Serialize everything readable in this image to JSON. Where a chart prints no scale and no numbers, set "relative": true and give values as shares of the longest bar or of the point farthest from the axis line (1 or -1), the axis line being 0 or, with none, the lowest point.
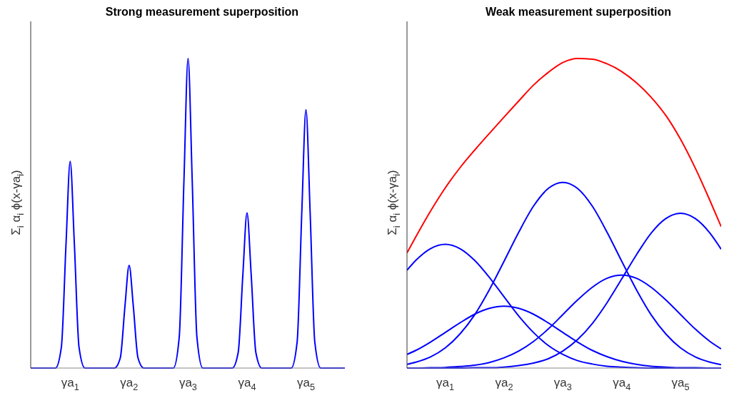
{
  "chart_data": [
    {
      "type": "line",
      "title": "Strong measurement superposition",
      "ylabel": "Σ$_{i}$ α$_{i}$ ϕ(x-γa$_{i}$)",
      "relative": true,
      "xlim": [
        0.33,
        5.66
      ],
      "xticks": [
        {
          "value": 1,
          "label": "γa$_{1}$"
        },
        {
          "value": 2,
          "label": "γa$_{2}$"
        },
        {
          "value": 3,
          "label": "γa$_{3}$"
        },
        {
          "value": 4,
          "label": "γa$_{4}$"
        },
        {
          "value": 5,
          "label": "γa$_{5}$"
        }
      ],
      "grid": false,
      "legend": false,
      "marker": "none",
      "line_style": "solid",
      "series": [
        {
          "color": "#0000ff",
          "x": [
            0.33,
            0.75,
            0.85,
            0.93,
            1,
            1.07,
            1.15,
            1.25,
            1.75,
            1.85,
            1.93,
            2,
            2.07,
            2.15,
            2.25,
            2.75,
            2.85,
            2.93,
            3,
            3.07,
            3.15,
            3.25,
            3.75,
            3.85,
            3.93,
            4,
            4.07,
            4.15,
            4.25,
            4.75,
            4.85,
            4.93,
            5,
            5.07,
            5.15,
            5.25,
            5.66
          ],
          "values": [
            0,
            0,
            0.067,
            0.405,
            0.668,
            0.405,
            0.067,
            0,
            0,
            0.033,
            0.202,
            0.332,
            0.202,
            0.033,
            0,
            0,
            0.1,
            0.607,
            1,
            0.607,
            0.1,
            0,
            0,
            0.05,
            0.304,
            0.501,
            0.304,
            0.05,
            0,
            0,
            0.084,
            0.507,
            0.835,
            0.507,
            0.084,
            0,
            0
          ]
        }
      ]
    },
    {
      "type": "line",
      "title": "Weak measurement superposition",
      "ylabel": "Σ$_{i}$ α$_{i}$ ϕ(x-γa$_{i}$)",
      "relative": true,
      "xlim": [
        0.35,
        5.69
      ],
      "xticks": [
        {
          "value": 1,
          "label": "γa$_{1}$"
        },
        {
          "value": 2,
          "label": "γa$_{2}$"
        },
        {
          "value": 3,
          "label": "γa$_{3}$"
        },
        {
          "value": 4,
          "label": "γa$_{4}$"
        },
        {
          "value": 5,
          "label": "γa$_{5}$"
        }
      ],
      "grid": false,
      "legend": false,
      "marker": "none",
      "line_style": "solid",
      "x": [
        0.35,
        0.5,
        0.75,
        1,
        1.25,
        1.5,
        1.75,
        2,
        2.25,
        2.5,
        2.75,
        3,
        3.25,
        3.5,
        3.75,
        4,
        4.25,
        4.5,
        4.75,
        5,
        5.25,
        5.5,
        5.69
      ],
      "series": [
        {
          "color": "#0000ff",
          "values": [
            0.316,
            0.348,
            0.386,
            0.4,
            0.386,
            0.348,
            0.293,
            0.23,
            0.168,
            0.115,
            0.073,
            0.044,
            0.024,
            0.013,
            0.006,
            0.003,
            0.001,
            0,
            0,
            0,
            0,
            0,
            0
          ]
        },
        {
          "color": "#0000ff",
          "values": [
            0.044,
            0.057,
            0.084,
            0.115,
            0.146,
            0.174,
            0.193,
            0.2,
            0.193,
            0.174,
            0.146,
            0.115,
            0.084,
            0.057,
            0.037,
            0.022,
            0.012,
            0.006,
            0.003,
            0.001,
            0.001,
            0,
            0
          ]
        },
        {
          "color": "#0000ff",
          "values": [
            0.012,
            0.019,
            0.036,
            0.065,
            0.11,
            0.172,
            0.253,
            0.345,
            0.439,
            0.523,
            0.58,
            0.6,
            0.58,
            0.523,
            0.439,
            0.345,
            0.253,
            0.172,
            0.11,
            0.065,
            0.036,
            0.019,
            0.011
          ]
        },
        {
          "color": "#0000ff",
          "values": [
            0,
            0,
            0.001,
            0.002,
            0.005,
            0.009,
            0.018,
            0.033,
            0.055,
            0.086,
            0.126,
            0.173,
            0.22,
            0.261,
            0.29,
            0.3,
            0.29,
            0.261,
            0.22,
            0.173,
            0.126,
            0.086,
            0.062
          ]
        },
        {
          "color": "#0000ff",
          "values": [
            0,
            0,
            0,
            0,
            0,
            0.001,
            0.001,
            0.003,
            0.008,
            0.016,
            0.03,
            0.055,
            0.092,
            0.144,
            0.211,
            0.288,
            0.366,
            0.436,
            0.483,
            0.5,
            0.483,
            0.436,
            0.384
          ]
        },
        {
          "color": "#ff0000",
          "values": [
            0.372,
            0.424,
            0.507,
            0.582,
            0.647,
            0.704,
            0.758,
            0.811,
            0.863,
            0.914,
            0.955,
            0.987,
            1,
            0.998,
            0.983,
            0.958,
            0.922,
            0.875,
            0.816,
            0.739,
            0.646,
            0.541,
            0.457
          ]
        }
      ]
    }
  ]
}
